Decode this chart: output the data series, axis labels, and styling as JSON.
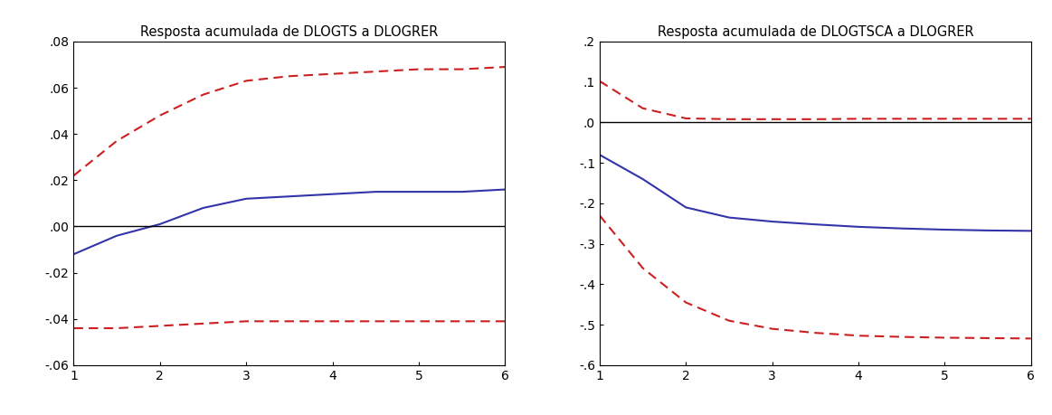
{
  "title_left": "Resposta acumulada de DLOGTS a DLOGRER",
  "title_right": "Resposta acumulada de DLOGTSCA a DLOGRER",
  "x": [
    1,
    1.5,
    2,
    2.5,
    3,
    3.5,
    4,
    4.5,
    5,
    5.5,
    6
  ],
  "left_center": [
    -0.012,
    -0.004,
    0.001,
    0.008,
    0.012,
    0.013,
    0.014,
    0.015,
    0.015,
    0.015,
    0.016
  ],
  "left_upper": [
    0.022,
    0.037,
    0.048,
    0.057,
    0.063,
    0.065,
    0.066,
    0.067,
    0.068,
    0.068,
    0.069
  ],
  "left_lower": [
    -0.044,
    -0.044,
    -0.043,
    -0.042,
    -0.041,
    -0.041,
    -0.041,
    -0.041,
    -0.041,
    -0.041,
    -0.041
  ],
  "right_center": [
    -0.08,
    -0.14,
    -0.21,
    -0.235,
    -0.245,
    -0.252,
    -0.258,
    -0.262,
    -0.265,
    -0.267,
    -0.268
  ],
  "right_upper": [
    0.102,
    0.035,
    0.01,
    0.008,
    0.008,
    0.008,
    0.009,
    0.009,
    0.009,
    0.009,
    0.009
  ],
  "right_lower": [
    -0.23,
    -0.36,
    -0.445,
    -0.49,
    -0.51,
    -0.52,
    -0.527,
    -0.53,
    -0.532,
    -0.533,
    -0.534
  ],
  "left_ylim": [
    -0.06,
    0.08
  ],
  "left_yticks": [
    -0.06,
    -0.04,
    -0.02,
    0.0,
    0.02,
    0.04,
    0.06,
    0.08
  ],
  "left_ytick_labels": [
    "-.06",
    "-.04",
    "-.02",
    ".00",
    ".02",
    ".04",
    ".06",
    ".08"
  ],
  "right_ylim": [
    -0.6,
    0.2
  ],
  "right_yticks": [
    -0.6,
    -0.5,
    -0.4,
    -0.3,
    -0.2,
    -0.1,
    0.0,
    0.1,
    0.2
  ],
  "right_ytick_labels": [
    "-.6",
    "-.5",
    "-.4",
    "-.3",
    "-.2",
    "-.1",
    ".0",
    ".1",
    ".2"
  ],
  "xticks": [
    1,
    2,
    3,
    4,
    5,
    6
  ],
  "xlim": [
    1,
    6
  ],
  "blue_color": "#3333aa",
  "red_color": "#cc2020",
  "bg_color": "#ffffff",
  "plot_bg_color": "#ffffff",
  "line_width": 1.5,
  "dash_pattern": [
    5,
    3
  ],
  "title_fontsize": 10.5
}
